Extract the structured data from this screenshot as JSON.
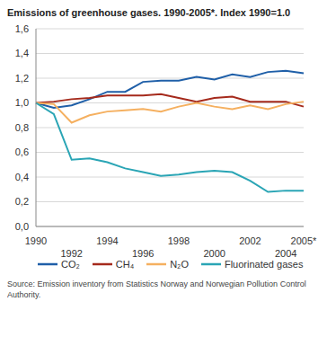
{
  "chart_data": {
    "type": "line",
    "title": "Emissions of greenhouse gases. 1990-2005*. Index 1990=1.0",
    "source": "Source: Emission inventory from Statistics Norway and Norwegian Pollution Control Authority.",
    "categories": [
      "1990",
      null,
      "1992",
      null,
      "1994",
      null,
      "1996",
      null,
      "1998",
      null,
      "2000",
      null,
      "2002",
      null,
      "2004",
      "2005*"
    ],
    "series": [
      {
        "name": "CO₂",
        "color": "#1f5fa8",
        "values": [
          1.0,
          0.96,
          0.98,
          1.03,
          1.09,
          1.09,
          1.17,
          1.18,
          1.18,
          1.21,
          1.19,
          1.23,
          1.21,
          1.25,
          1.26,
          1.24
        ]
      },
      {
        "name": "CH₄",
        "color": "#a52a1c",
        "values": [
          1.0,
          1.01,
          1.03,
          1.04,
          1.06,
          1.06,
          1.06,
          1.07,
          1.04,
          1.01,
          1.04,
          1.05,
          1.01,
          1.01,
          1.01,
          0.97
        ]
      },
      {
        "name": "N₂O",
        "color": "#f5b060",
        "values": [
          1.0,
          0.99,
          0.84,
          0.9,
          0.93,
          0.94,
          0.95,
          0.93,
          0.97,
          1.0,
          0.97,
          0.95,
          0.98,
          0.95,
          0.99,
          1.01
        ]
      },
      {
        "name": "Fluorinated gases",
        "color": "#2aa5b5",
        "values": [
          1.0,
          0.91,
          0.54,
          0.55,
          0.52,
          0.47,
          0.44,
          0.41,
          0.42,
          0.44,
          0.45,
          0.44,
          0.37,
          0.28,
          0.29,
          0.29
        ]
      }
    ],
    "ylim": [
      0,
      1.6
    ],
    "yticks": [
      {
        "value": 0,
        "label": "0,0"
      },
      {
        "value": 0.2,
        "label": "0,2"
      },
      {
        "value": 0.4,
        "label": "0,4"
      },
      {
        "value": 0.6,
        "label": "0,6"
      },
      {
        "value": 0.8,
        "label": "0,8"
      },
      {
        "value": 1.0,
        "label": "1,0"
      },
      {
        "value": 1.2,
        "label": "1,2"
      },
      {
        "value": 1.4,
        "label": "1,4"
      },
      {
        "value": 1.6,
        "label": "1,6"
      }
    ],
    "grid": true,
    "legend": "bottom"
  }
}
